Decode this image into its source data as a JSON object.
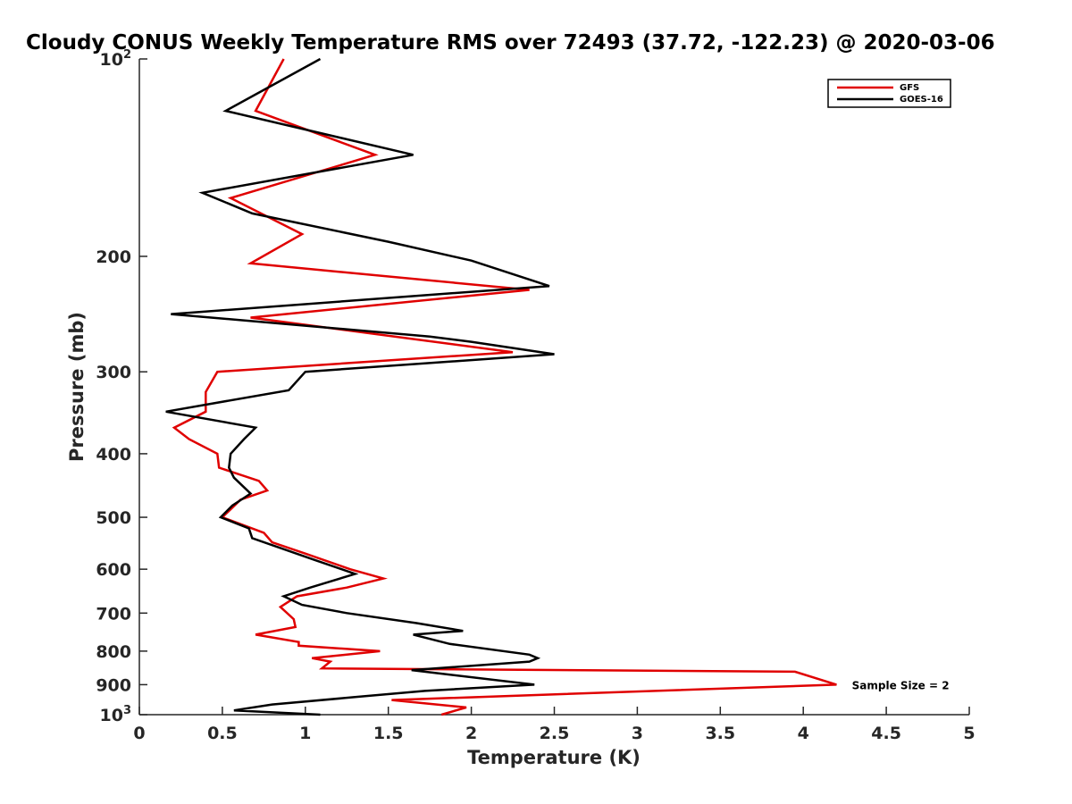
{
  "chart_data": {
    "type": "line",
    "title": "Cloudy CONUS Weekly Temperature RMS over 72493 (37.72, -122.23) @ 2020-03-06",
    "xlabel": "Temperature (K)",
    "ylabel": "Pressure (mb)",
    "xlim": [
      0,
      5
    ],
    "ylim": [
      100,
      1000
    ],
    "y_scale": "log",
    "y_reversed": true,
    "x_ticks": [
      "0",
      "0.5",
      "1",
      "1.5",
      "2",
      "2.5",
      "3",
      "3.5",
      "4",
      "4.5",
      "5"
    ],
    "y_ticks": [
      {
        "value": 100,
        "base": "10",
        "exp": "2"
      },
      {
        "value": 200,
        "label": "200"
      },
      {
        "value": 300,
        "label": "300"
      },
      {
        "value": 400,
        "label": "400"
      },
      {
        "value": 500,
        "label": "500"
      },
      {
        "value": 600,
        "label": "600"
      },
      {
        "value": 700,
        "label": "700"
      },
      {
        "value": 800,
        "label": "800"
      },
      {
        "value": 900,
        "label": "900"
      },
      {
        "value": 1000,
        "base": "10",
        "exp": "3"
      }
    ],
    "legend_position": "top-right",
    "grid": false,
    "annotation": {
      "text": "Sample Size = 2",
      "x": 4.25,
      "y": 900
    },
    "series": [
      {
        "name": "GFS",
        "color": "#e00000",
        "points": [
          [
            0.87,
            100
          ],
          [
            0.7,
            120
          ],
          [
            1.42,
            140
          ],
          [
            0.55,
            163
          ],
          [
            0.98,
            185
          ],
          [
            0.67,
            205
          ],
          [
            2.35,
            225
          ],
          [
            0.67,
            248
          ],
          [
            2.25,
            280
          ],
          [
            0.47,
            300
          ],
          [
            0.4,
            322
          ],
          [
            0.4,
            345
          ],
          [
            0.21,
            365
          ],
          [
            0.3,
            380
          ],
          [
            0.47,
            400
          ],
          [
            0.48,
            420
          ],
          [
            0.72,
            440
          ],
          [
            0.77,
            455
          ],
          [
            0.61,
            470
          ],
          [
            0.5,
            500
          ],
          [
            0.75,
            528
          ],
          [
            0.8,
            546
          ],
          [
            1.0,
            568
          ],
          [
            1.27,
            600
          ],
          [
            1.47,
            620
          ],
          [
            1.25,
            640
          ],
          [
            0.95,
            660
          ],
          [
            0.85,
            685
          ],
          [
            0.93,
            715
          ],
          [
            0.94,
            735
          ],
          [
            0.7,
            755
          ],
          [
            0.96,
            775
          ],
          [
            0.96,
            785
          ],
          [
            1.45,
            800
          ],
          [
            1.04,
            820
          ],
          [
            1.15,
            830
          ],
          [
            1.1,
            850
          ],
          [
            3.95,
            860
          ],
          [
            4.2,
            900
          ],
          [
            1.52,
            950
          ],
          [
            1.97,
            975
          ],
          [
            1.82,
            1000
          ]
        ]
      },
      {
        "name": "GOES-16",
        "color": "#000000",
        "points": [
          [
            1.09,
            100
          ],
          [
            0.52,
            120
          ],
          [
            1.65,
            140
          ],
          [
            0.38,
            160
          ],
          [
            0.68,
            172
          ],
          [
            1.5,
            190
          ],
          [
            2.0,
            203
          ],
          [
            2.47,
            222
          ],
          [
            0.19,
            245
          ],
          [
            1.75,
            265
          ],
          [
            2.0,
            270
          ],
          [
            2.5,
            282
          ],
          [
            1.0,
            300
          ],
          [
            0.9,
            320
          ],
          [
            0.16,
            345
          ],
          [
            0.7,
            365
          ],
          [
            0.63,
            380
          ],
          [
            0.55,
            400
          ],
          [
            0.54,
            420
          ],
          [
            0.57,
            435
          ],
          [
            0.67,
            460
          ],
          [
            0.56,
            480
          ],
          [
            0.49,
            500
          ],
          [
            0.66,
            520
          ],
          [
            0.68,
            538
          ],
          [
            1.05,
            580
          ],
          [
            1.3,
            610
          ],
          [
            1.03,
            640
          ],
          [
            0.87,
            660
          ],
          [
            0.98,
            680
          ],
          [
            1.25,
            700
          ],
          [
            1.67,
            725
          ],
          [
            1.95,
            745
          ],
          [
            1.65,
            755
          ],
          [
            1.87,
            780
          ],
          [
            2.35,
            810
          ],
          [
            2.4,
            820
          ],
          [
            2.35,
            830
          ],
          [
            1.64,
            855
          ],
          [
            2.38,
            900
          ],
          [
            1.72,
            920
          ],
          [
            1.3,
            940
          ],
          [
            0.8,
            965
          ],
          [
            0.57,
            985
          ],
          [
            1.09,
            1000
          ]
        ]
      }
    ]
  }
}
